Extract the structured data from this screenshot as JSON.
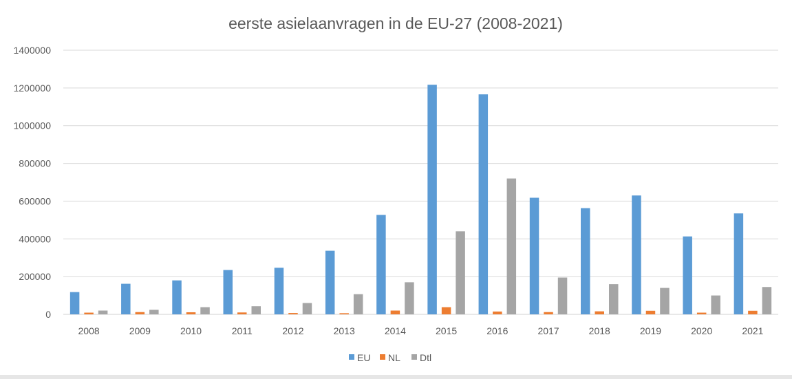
{
  "chart_data": {
    "type": "bar",
    "title": "eerste asielaanvragen in de EU-27 (2008-2021)",
    "xlabel": "",
    "ylabel": "",
    "categories": [
      "2008",
      "2009",
      "2010",
      "2011",
      "2012",
      "2013",
      "2014",
      "2015",
      "2016",
      "2017",
      "2018",
      "2019",
      "2020",
      "2021"
    ],
    "series": [
      {
        "name": "EU",
        "color": "#5b9bd5",
        "values": [
          118000,
          162000,
          180000,
          235000,
          247000,
          337000,
          527000,
          1217000,
          1166000,
          618000,
          563000,
          630000,
          413000,
          535000
        ]
      },
      {
        "name": "NL",
        "color": "#ed7d31",
        "values": [
          9000,
          12000,
          11000,
          10000,
          7000,
          6000,
          20000,
          38000,
          15000,
          12000,
          16000,
          19000,
          9000,
          19000
        ]
      },
      {
        "name": "Dtl",
        "color": "#a5a5a5",
        "values": [
          20000,
          24000,
          38000,
          43000,
          60000,
          107000,
          170000,
          440000,
          720000,
          195000,
          160000,
          140000,
          100000,
          145000
        ]
      }
    ],
    "ylim": [
      0,
      1400000
    ],
    "yticks": [
      "0",
      "200000",
      "400000",
      "600000",
      "800000",
      "1000000",
      "1200000",
      "1400000"
    ],
    "grid": true,
    "legend_position": "bottom"
  }
}
